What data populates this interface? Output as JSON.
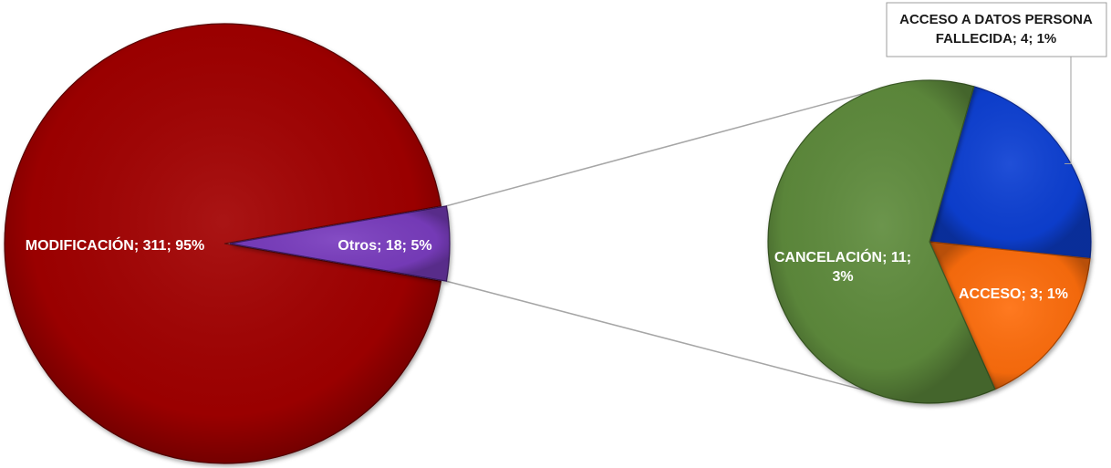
{
  "chart_data": {
    "type": "pie",
    "variant": "pie-of-pie",
    "main_pie": {
      "slices": [
        {
          "name": "MODIFICACIÓN",
          "value": 311,
          "percent": "95%",
          "color": "#a20202",
          "label": "MODIFICACIÓN; 311; 95%"
        },
        {
          "name": "Otros",
          "value": 18,
          "percent": "5%",
          "color": "#7a3cbf",
          "label": "Otros; 18; 5%"
        }
      ]
    },
    "secondary_pie": {
      "slices": [
        {
          "name": "ACCESO A DATOS PERSONA FALLECIDA",
          "value": 4,
          "percent": "1%",
          "color": "#0f3fd4",
          "label_lines": [
            "ACCESO A DATOS PERSONA",
            "FALLECIDA; 4; 1%"
          ],
          "callout": true
        },
        {
          "name": "ACCESO",
          "value": 3,
          "percent": "1%",
          "color": "#ff6e0a",
          "label_lines": [
            "ACCESO; 3; 1%"
          ]
        },
        {
          "name": "CANCELACIÓN",
          "value": 11,
          "percent": "3%",
          "color": "#5e8c3c",
          "label_lines": [
            "CANCELACIÓN; 11;",
            "3%"
          ]
        }
      ]
    }
  }
}
